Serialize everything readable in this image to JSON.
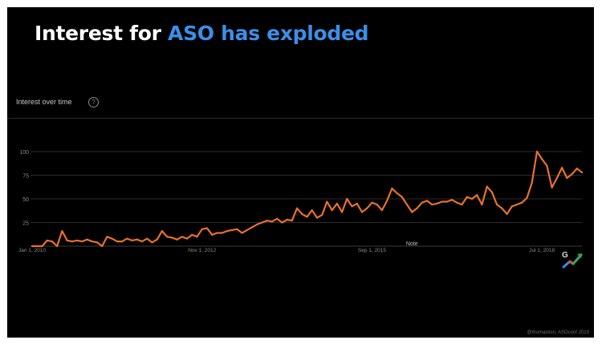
{
  "slide": {
    "title_prefix": "Interest for ",
    "title_highlight": "ASO has exploded",
    "chart_heading": "Interest over time",
    "help_icon": "question-circle-icon",
    "google_icon": "google-trends-icon",
    "credit": "@thomasbsn, ASOconf 2019"
  },
  "colors": {
    "background": "#000000",
    "title": "#ffffff",
    "title_accent": "#3b8fe8",
    "line": "#e8712b",
    "grid": "#2c2c2c",
    "axis_text": "#8c8c8c"
  },
  "chart_data": {
    "type": "line",
    "title": "Interest over time",
    "xlabel": "",
    "ylabel": "",
    "ylim": [
      0,
      100
    ],
    "yticks": [
      25,
      50,
      75,
      100
    ],
    "xlim": [
      "2010-01",
      "2019-03"
    ],
    "xticks": [
      {
        "date": "2010-01",
        "label": "Jan 1, 2010"
      },
      {
        "date": "2012-11",
        "label": "Nov 1, 2012"
      },
      {
        "date": "2015-09",
        "label": "Sep 1, 2015"
      },
      {
        "date": "2018-07",
        "label": "Jul 1, 2018"
      }
    ],
    "grid": true,
    "annotations": [
      {
        "date": "2016-05",
        "text": "Note"
      }
    ],
    "series": [
      {
        "x": [
          "2010-01",
          "2010-02",
          "2010-03",
          "2010-04",
          "2010-05",
          "2010-06",
          "2010-07",
          "2010-08",
          "2010-09",
          "2010-10",
          "2010-11",
          "2010-12",
          "2011-01",
          "2011-02",
          "2011-03",
          "2011-04",
          "2011-05",
          "2011-06",
          "2011-07",
          "2011-08",
          "2011-09",
          "2011-10",
          "2011-11",
          "2011-12",
          "2012-01",
          "2012-02",
          "2012-03",
          "2012-04",
          "2012-05",
          "2012-06",
          "2012-07",
          "2012-08",
          "2012-09",
          "2012-10",
          "2012-11",
          "2012-12",
          "2013-01",
          "2013-02",
          "2013-03",
          "2013-04",
          "2013-05",
          "2013-06",
          "2013-07",
          "2013-08",
          "2013-09",
          "2013-10",
          "2013-11",
          "2013-12",
          "2014-01",
          "2014-02",
          "2014-03",
          "2014-04",
          "2014-05",
          "2014-06",
          "2014-07",
          "2014-08",
          "2014-09",
          "2014-10",
          "2014-11",
          "2014-12",
          "2015-01",
          "2015-02",
          "2015-03",
          "2015-04",
          "2015-05",
          "2015-06",
          "2015-07",
          "2015-08",
          "2015-09",
          "2015-10",
          "2015-11",
          "2015-12",
          "2016-01",
          "2016-02",
          "2016-03",
          "2016-04",
          "2016-05",
          "2016-06",
          "2016-07",
          "2016-08",
          "2016-09",
          "2016-10",
          "2016-11",
          "2016-12",
          "2017-01",
          "2017-02",
          "2017-03",
          "2017-04",
          "2017-05",
          "2017-06",
          "2017-07",
          "2017-08",
          "2017-09",
          "2017-10",
          "2017-11",
          "2017-12",
          "2018-01",
          "2018-02",
          "2018-03",
          "2018-04",
          "2018-05",
          "2018-06",
          "2018-07",
          "2018-08",
          "2018-09",
          "2018-10",
          "2018-11",
          "2018-12",
          "2019-01",
          "2019-02",
          "2019-03"
        ],
        "values": [
          0,
          0,
          0,
          6,
          5,
          0,
          16,
          6,
          5,
          6,
          5,
          7,
          5,
          4,
          0,
          10,
          8,
          5,
          5,
          8,
          6,
          7,
          5,
          8,
          4,
          7,
          16,
          10,
          9,
          7,
          10,
          8,
          12,
          10,
          18,
          19,
          12,
          14,
          14,
          16,
          17,
          18,
          14,
          17,
          20,
          23,
          25,
          27,
          26,
          29,
          25,
          28,
          27,
          40,
          34,
          31,
          38,
          30,
          33,
          47,
          38,
          45,
          36,
          50,
          42,
          45,
          36,
          40,
          46,
          44,
          38,
          48,
          61,
          56,
          52,
          44,
          36,
          40,
          46,
          48,
          44,
          45,
          47,
          47,
          49,
          46,
          44,
          52,
          50,
          54,
          44,
          63,
          57,
          44,
          40,
          34,
          42,
          44,
          46,
          51,
          67,
          100,
          92,
          85,
          62,
          72,
          83,
          72,
          76,
          82,
          78
        ]
      }
    ]
  }
}
